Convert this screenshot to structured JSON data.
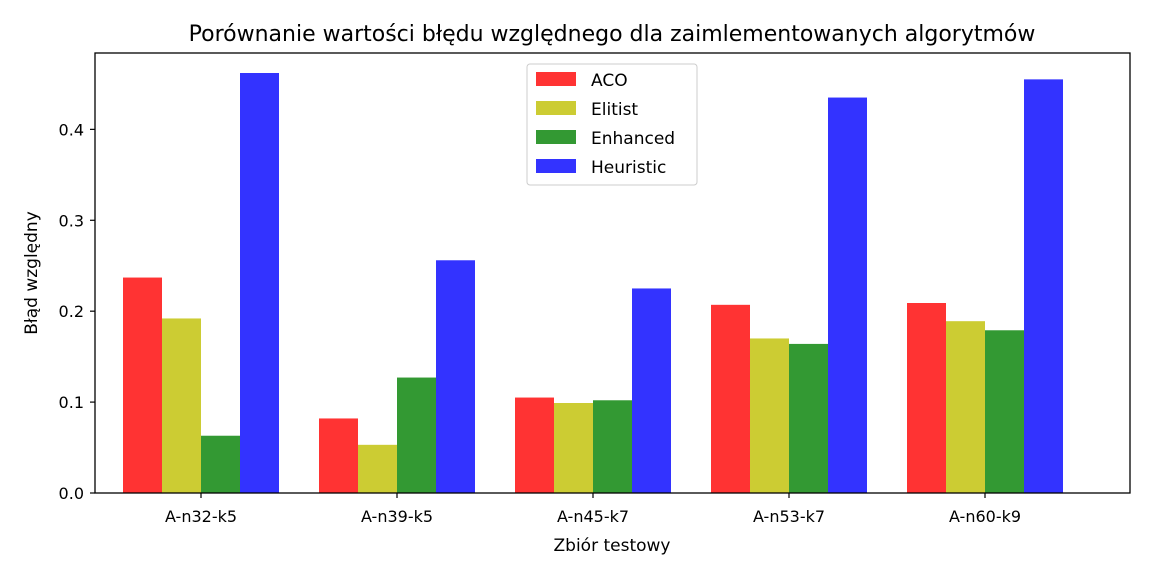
{
  "chart_data": {
    "type": "bar",
    "title": "Porównanie wartości błędu względnego dla zaimlementowanych algorytmów",
    "xlabel": "Zbiór testowy",
    "ylabel": "Błąd względny",
    "categories": [
      "A-n32-k5",
      "A-n39-k5",
      "A-n45-k7",
      "A-n53-k7",
      "A-n60-k9"
    ],
    "series": [
      {
        "name": "ACO",
        "color": "#ff3333",
        "values": [
          0.237,
          0.082,
          0.105,
          0.207,
          0.209
        ]
      },
      {
        "name": "Elitist",
        "color": "#cccc33",
        "values": [
          0.192,
          0.053,
          0.099,
          0.17,
          0.189
        ]
      },
      {
        "name": "Enhanced",
        "color": "#339933",
        "values": [
          0.063,
          0.127,
          0.102,
          0.164,
          0.179
        ]
      },
      {
        "name": "Heuristic",
        "color": "#3333ff",
        "values": [
          0.462,
          0.256,
          0.225,
          0.435,
          0.455
        ]
      }
    ],
    "ylim": [
      0,
      0.484
    ],
    "yticks": [
      "0.0",
      "0.1",
      "0.2",
      "0.3",
      "0.4"
    ],
    "ytick_values": [
      0,
      0.1,
      0.2,
      0.3,
      0.4
    ],
    "grid": false,
    "legend_position": "top-center"
  }
}
